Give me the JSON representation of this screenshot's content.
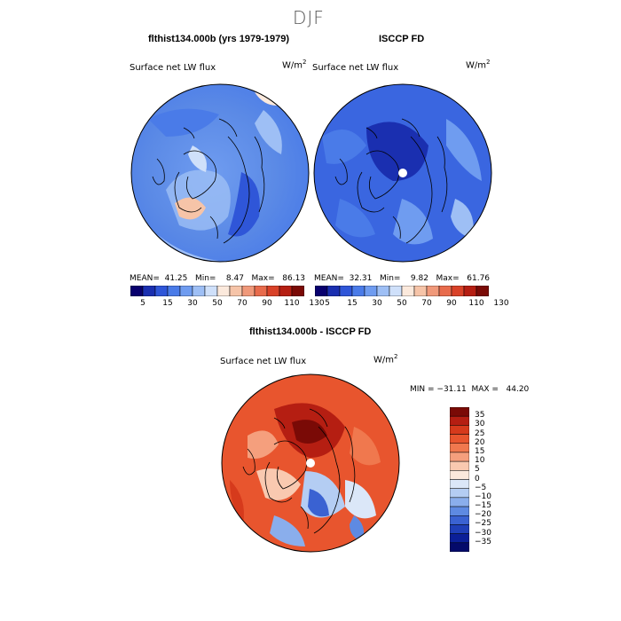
{
  "main_title": "DJF",
  "left_panel": {
    "title": "flthist134.000b (yrs 1979-1979)",
    "field": "Surface net LW flux",
    "units": "W/m",
    "units_exp": "2",
    "stats": "MEAN=  41.25   Min=    8.47   Max=   86.13"
  },
  "right_panel": {
    "title": "ISCCP FD",
    "field": "Surface net LW flux",
    "units": "W/m",
    "units_exp": "2",
    "stats": "MEAN=  32.31   Min=    9.82   Max=   61.76"
  },
  "diff_panel": {
    "title": "flthist134.000b - ISCCP FD",
    "field": "Surface net LW flux",
    "units": "W/m",
    "units_exp": "2",
    "stats": "MIN = −31.11  MAX =   44.20"
  },
  "colorbar_top": {
    "colors": [
      "#08006e",
      "#1a2fb0",
      "#2f56d8",
      "#4a7be8",
      "#6f9cf0",
      "#9ebff5",
      "#cfe0fa",
      "#fbe9dc",
      "#f6c4a8",
      "#f0997a",
      "#e86b4c",
      "#d94228",
      "#b51e12",
      "#7a0a06"
    ],
    "ticks": [
      "5",
      "15",
      "30",
      "50",
      "70",
      "90",
      "110",
      "130"
    ]
  },
  "colorbar_diff": {
    "colors": [
      "#7a0a06",
      "#b51e12",
      "#d63a1c",
      "#e8552e",
      "#f0784e",
      "#f59f7d",
      "#f9c9b0",
      "#fbe9dc",
      "#dbe7f8",
      "#b4cdf3",
      "#8aaeec",
      "#5e8ae2",
      "#3a62d2",
      "#1f3fb8",
      "#0b1f98",
      "#040a6a"
    ],
    "ticks": [
      "35",
      "30",
      "25",
      "20",
      "15",
      "10",
      "5",
      "0",
      "−5",
      "−10",
      "−15",
      "−20",
      "−25",
      "−30",
      "−35"
    ]
  }
}
